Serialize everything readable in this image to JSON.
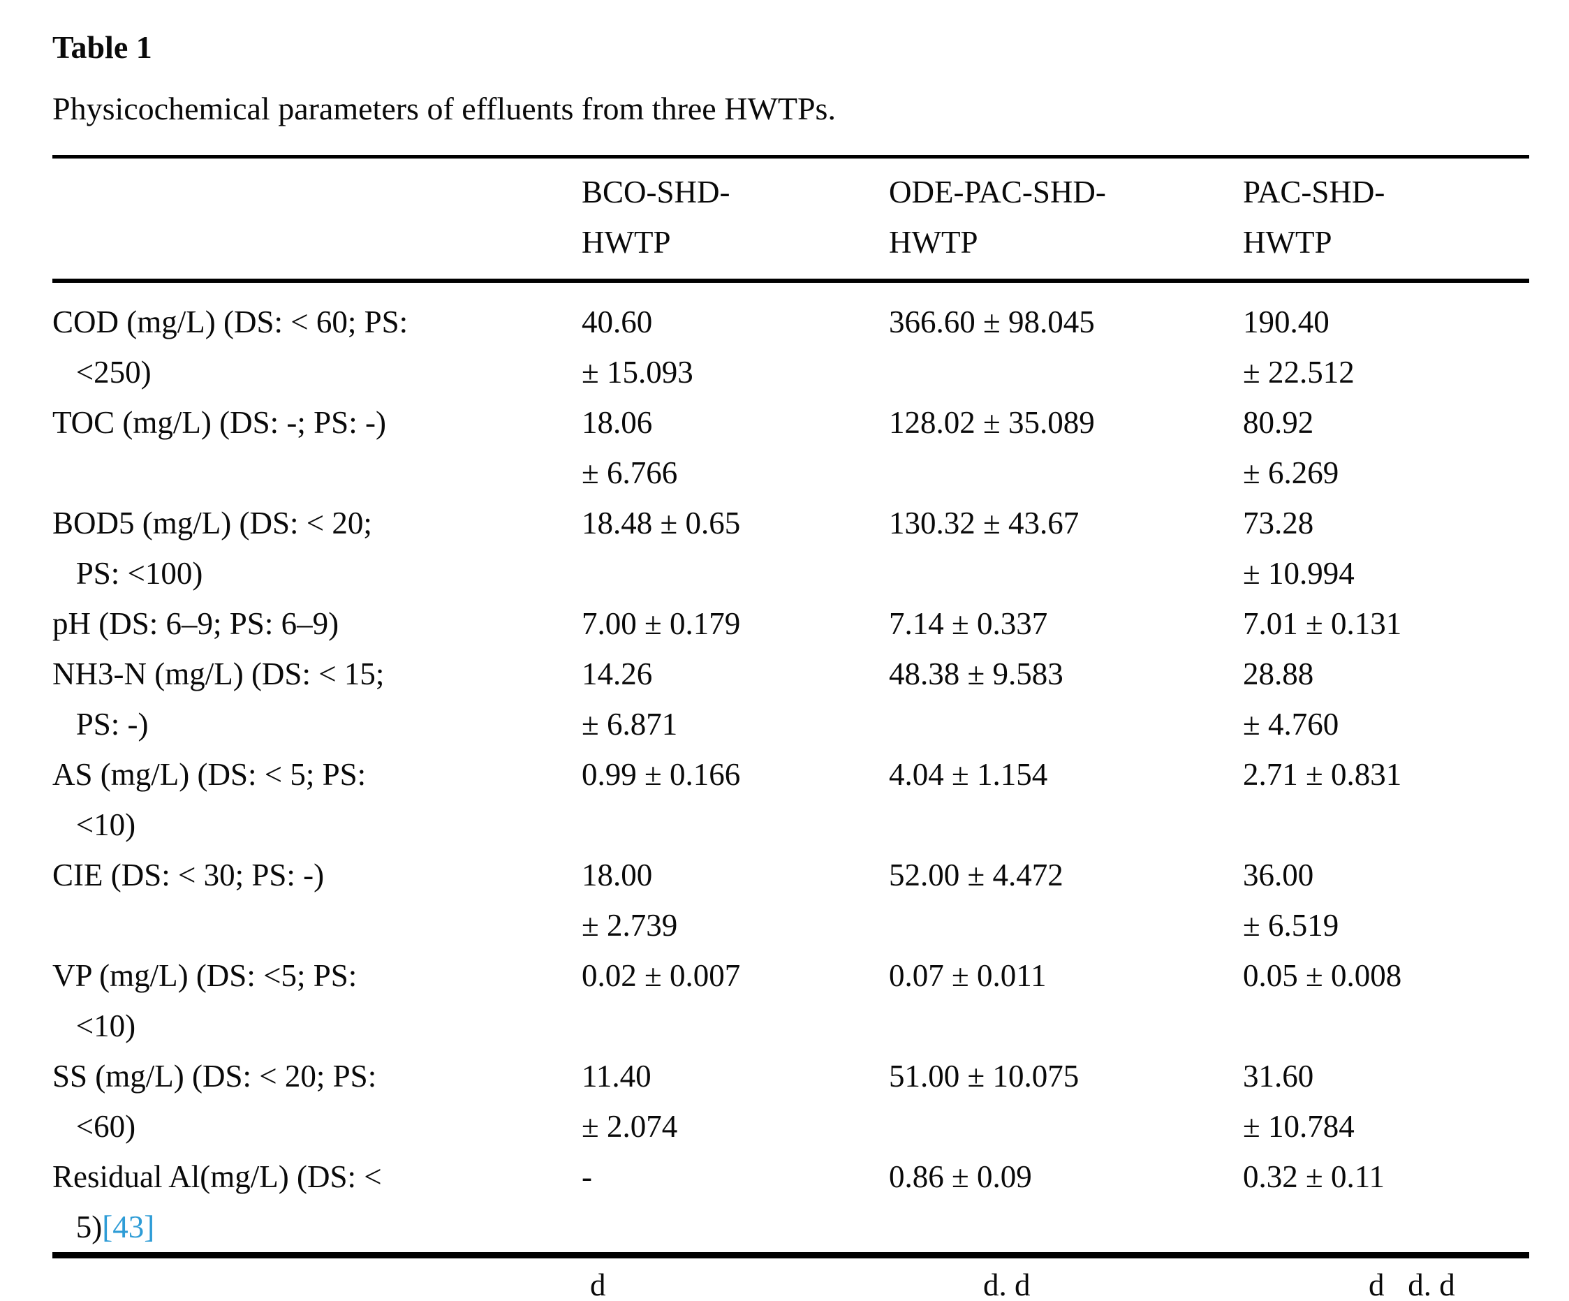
{
  "header": {
    "title": "Table 1",
    "caption": "Physicochemical parameters of effluents from three HWTPs."
  },
  "table": {
    "columns": [
      "",
      "BCO-SHD-\nHWTP",
      "ODE-PAC-SHD-\nHWTP",
      "PAC-SHD-\nHWTP"
    ],
    "rows": [
      {
        "label": "COD (mg/L) (DS: < 60; PS:\n   <250)",
        "cells": [
          "40.60\n± 15.093",
          "366.60 ± 98.045",
          "190.40\n± 22.512"
        ]
      },
      {
        "label": "TOC (mg/L) (DS: -; PS: -)",
        "cells": [
          "18.06\n± 6.766",
          "128.02 ± 35.089",
          "80.92\n± 6.269"
        ]
      },
      {
        "label": "BOD5 (mg/L) (DS: < 20;\n   PS: <100)",
        "cells": [
          "18.48 ± 0.65",
          "130.32 ± 43.67",
          "73.28\n± 10.994"
        ]
      },
      {
        "label": "pH (DS: 6–9; PS: 6–9)",
        "cells": [
          "7.00 ± 0.179",
          "7.14 ± 0.337",
          "7.01 ± 0.131"
        ]
      },
      {
        "label": "NH3-N (mg/L) (DS: < 15;\n   PS: -)",
        "cells": [
          "14.26\n± 6.871",
          "48.38 ± 9.583",
          "28.88\n± 4.760"
        ]
      },
      {
        "label": "AS (mg/L) (DS: < 5; PS:\n   <10)",
        "cells": [
          "0.99 ± 0.166",
          "4.04 ± 1.154",
          "2.71 ± 0.831"
        ]
      },
      {
        "label": "CIE (DS: < 30; PS: -)",
        "cells": [
          "18.00\n± 2.739",
          "52.00 ± 4.472",
          "36.00\n± 6.519"
        ]
      },
      {
        "label": "VP (mg/L) (DS: <5; PS:\n   <10)",
        "cells": [
          "0.02 ± 0.007",
          "0.07 ± 0.011",
          "0.05 ± 0.008"
        ]
      },
      {
        "label": "SS (mg/L) (DS: < 20; PS:\n   <60)",
        "cells": [
          "11.40\n± 2.074",
          "51.00 ± 10.075",
          "31.60\n± 10.784"
        ]
      },
      {
        "label": "Residual Al(mg/L) (DS: <\n   5)",
        "citation": "[43]",
        "cells": [
          "-",
          "0.86 ± 0.09",
          "0.32 ± 0.11"
        ]
      }
    ]
  },
  "colors": {
    "text": "#0a0a0a",
    "citation_link": "#2e9cd6",
    "rule": "#000000",
    "background": "#ffffff"
  },
  "footnote": {
    "fragments": [
      "d",
      "d. d",
      "d   d. d"
    ]
  }
}
